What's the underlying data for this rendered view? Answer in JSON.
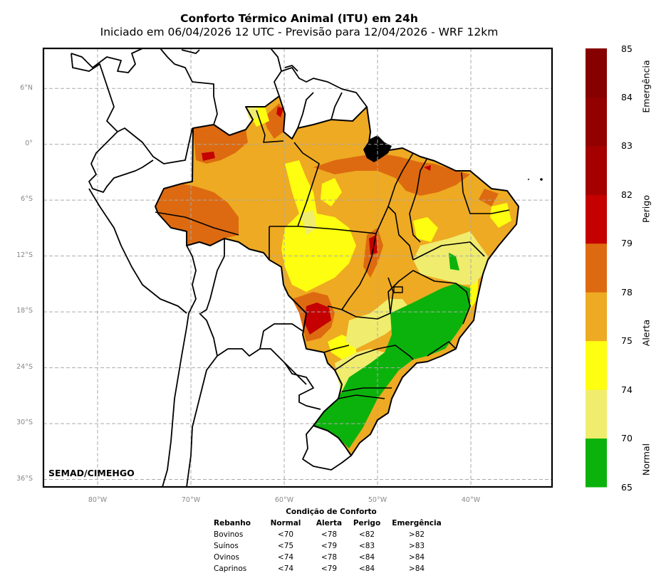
{
  "header": {
    "title": "Conforto Térmico Animal (ITU) em 24h",
    "subtitle": "Iniciado em 06/04/2026 12 UTC - Previsão para 12/04/2026 - WRF 12km"
  },
  "map": {
    "region": "Brazil",
    "variable": "ITU",
    "credit": "SEMAD/CIMEHGO",
    "lat_ticks": [
      "6°N",
      "0°",
      "6°S",
      "12°S",
      "18°S",
      "24°S",
      "30°S",
      "36°S"
    ],
    "lon_ticks": [
      "80°W",
      "70°W",
      "60°W",
      "50°W",
      "40°W"
    ],
    "lat_values": [
      6,
      0,
      -6,
      -12,
      -18,
      -24,
      -30,
      -36
    ],
    "lon_values": [
      -80,
      -70,
      -60,
      -50,
      -40
    ],
    "extent": {
      "lon_min": -85.8,
      "lon_max": -31.3,
      "lat_min": -36.8,
      "lat_max": 10.3
    },
    "gridlines": true
  },
  "colorbar": {
    "ticks": [
      "65",
      "70",
      "74",
      "75",
      "78",
      "79",
      "82",
      "83",
      "84",
      "85"
    ],
    "colors": [
      "#0cb20c",
      "#f0ec6e",
      "#fefe10",
      "#eeaa22",
      "#dd6a10",
      "#c40000",
      "#a40000",
      "#920000",
      "#860000"
    ],
    "categories": [
      {
        "label": "Normal"
      },
      {
        "label": "Alerta"
      },
      {
        "label": "Perigo"
      },
      {
        "label": "Emergência"
      }
    ]
  },
  "comfort_table": {
    "caption": "Condição de Conforto",
    "headers": [
      "Rebanho",
      "Normal",
      "Alerta",
      "Perigo",
      "Emergência"
    ],
    "rows": [
      [
        "Bovinos",
        "<70",
        "<78",
        "<82",
        ">82"
      ],
      [
        "Suínos",
        "<75",
        "<79",
        "<83",
        ">83"
      ],
      [
        "Ovinos",
        "<74",
        "<78",
        "<84",
        ">84"
      ],
      [
        "Caprinos",
        "<74",
        "<79",
        "<84",
        ">84"
      ]
    ]
  }
}
